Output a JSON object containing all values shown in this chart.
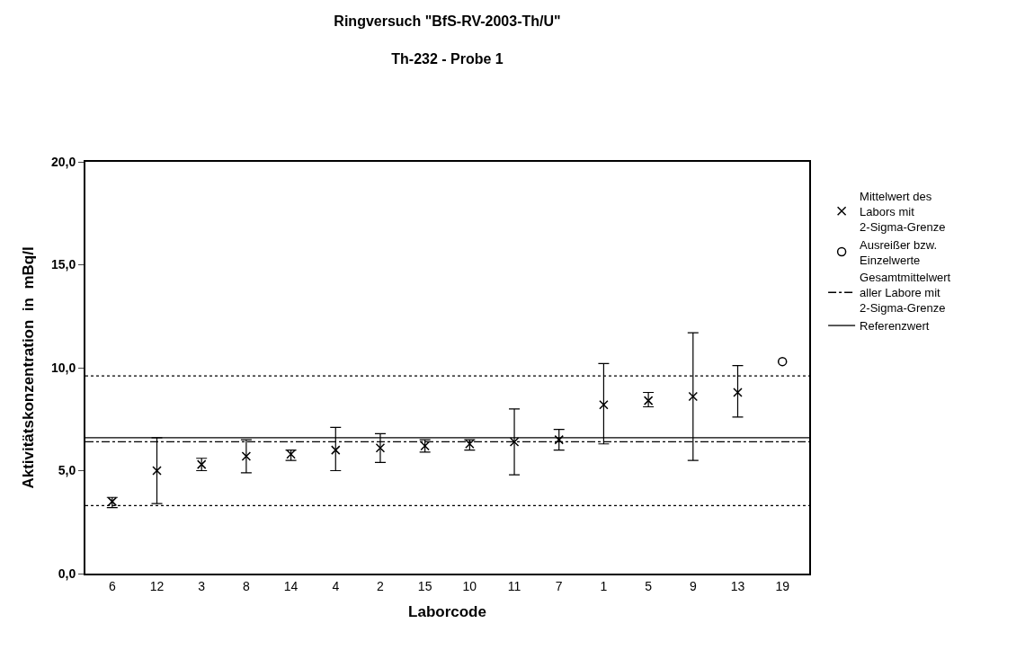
{
  "chart_data": {
    "type": "scatter",
    "title": "Ringversuch \"BfS-RV-2003-Th/U\"",
    "subtitle": "Th-232 - Probe 1",
    "xlabel": "Laborcode",
    "ylabel": "Aktivitätskonzentration  in  mBq/l",
    "categories": [
      "6",
      "12",
      "3",
      "8",
      "14",
      "4",
      "2",
      "15",
      "10",
      "11",
      "7",
      "1",
      "5",
      "9",
      "13",
      "19"
    ],
    "series": [
      {
        "name": "Mittelwert des\nLabors mit\n2-Sigma-Grenze",
        "color": "#000000",
        "marker": "cross",
        "values": [
          3.5,
          5.0,
          5.3,
          5.7,
          5.8,
          6.0,
          6.1,
          6.2,
          6.3,
          6.4,
          6.5,
          8.2,
          8.4,
          8.6,
          8.8,
          null
        ],
        "errors": [
          [
            3.2,
            3.7
          ],
          [
            3.4,
            6.6
          ],
          [
            5.0,
            5.6
          ],
          [
            4.9,
            6.5
          ],
          [
            5.5,
            6.0
          ],
          [
            5.0,
            7.1
          ],
          [
            5.4,
            6.8
          ],
          [
            5.9,
            6.5
          ],
          [
            6.0,
            6.5
          ],
          [
            4.8,
            8.0
          ],
          [
            6.0,
            7.0
          ],
          [
            6.3,
            10.2
          ],
          [
            8.1,
            8.8
          ],
          [
            5.5,
            11.7
          ],
          [
            7.6,
            10.1
          ],
          null
        ]
      },
      {
        "name": "Ausreißer bzw.\nEinzelwerte",
        "color": "#000000",
        "marker": "circle",
        "x": [
          "19"
        ],
        "values": [
          10.3
        ]
      }
    ],
    "ref_lines": [
      {
        "axis": "y",
        "value": 9.6,
        "label": null,
        "line_style": "dotted",
        "color": "#000000"
      },
      {
        "axis": "y",
        "value": 6.4,
        "label": "Gesamtmittelwert\naller Labore mit\n2-Sigma-Grenze",
        "line_style": "dashdot",
        "color": "#000000"
      },
      {
        "axis": "y",
        "value": 3.3,
        "label": null,
        "line_style": "dotted",
        "color": "#000000"
      },
      {
        "axis": "y",
        "value": 6.6,
        "label": "Referenzwert",
        "line_style": "solid",
        "color": "#000000"
      }
    ],
    "ylim": [
      0,
      20
    ],
    "yticks": [
      {
        "value": 0,
        "label": "0,0"
      },
      {
        "value": 5,
        "label": "5,0"
      },
      {
        "value": 10,
        "label": "10,0"
      },
      {
        "value": 15,
        "label": "15,0"
      },
      {
        "value": 20,
        "label": "20,0"
      }
    ],
    "legend": "right"
  }
}
